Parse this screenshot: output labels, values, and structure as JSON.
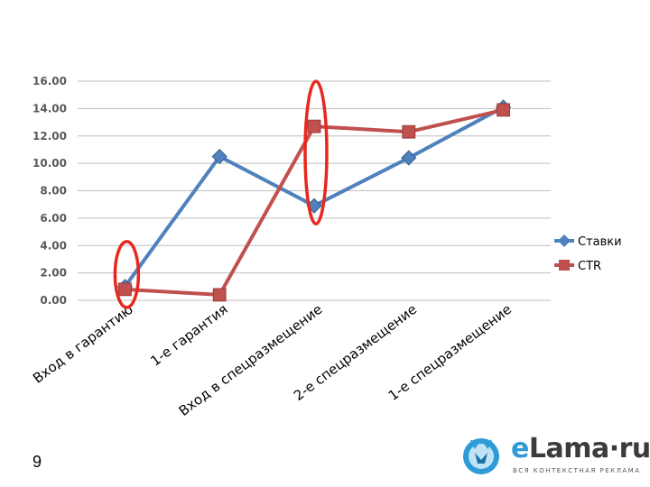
{
  "slide": {
    "number": "9"
  },
  "logo": {
    "text_e": "e",
    "text_main": "Lama·ru",
    "tagline": "ВСЯ КОНТЕКСТНАЯ РЕКЛАМА"
  },
  "chart_data": {
    "type": "line",
    "categories": [
      "Вход в гарантию",
      "1-е гарантия",
      "Вход в спецразмещение",
      "2-е спецразмещение",
      "1-е спецразмещение"
    ],
    "series": [
      {
        "name": "Ставки",
        "values": [
          1.0,
          10.5,
          6.9,
          10.4,
          14.1
        ],
        "color": "#4F81BD",
        "marker": "diamond"
      },
      {
        "name": "CTR",
        "values": [
          0.8,
          0.4,
          12.7,
          12.3,
          13.9
        ],
        "color": "#C0504D",
        "marker": "square"
      }
    ],
    "yticks": [
      "0.00",
      "2.00",
      "4.00",
      "6.00",
      "8.00",
      "10.00",
      "12.00",
      "14.00",
      "16.00"
    ],
    "ylim": [
      0,
      16
    ],
    "grid": true,
    "legend_position": "right",
    "highlights": [
      {
        "category_index": 0,
        "color": "#E8281E"
      },
      {
        "category_index": 2,
        "color": "#E8281E"
      }
    ]
  }
}
